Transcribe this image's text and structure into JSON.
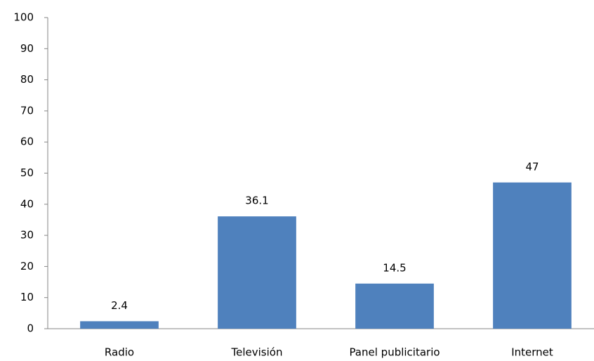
{
  "chart_data": {
    "type": "bar",
    "categories": [
      "Radio",
      "Televisión",
      "Panel publicitario",
      "Internet"
    ],
    "values": [
      2.4,
      36.1,
      14.5,
      47
    ],
    "color": "#4f81bd",
    "ylim": [
      0,
      100
    ],
    "yticks": [
      0,
      10,
      20,
      30,
      40,
      50,
      60,
      70,
      80,
      90,
      100
    ],
    "grid": false
  }
}
